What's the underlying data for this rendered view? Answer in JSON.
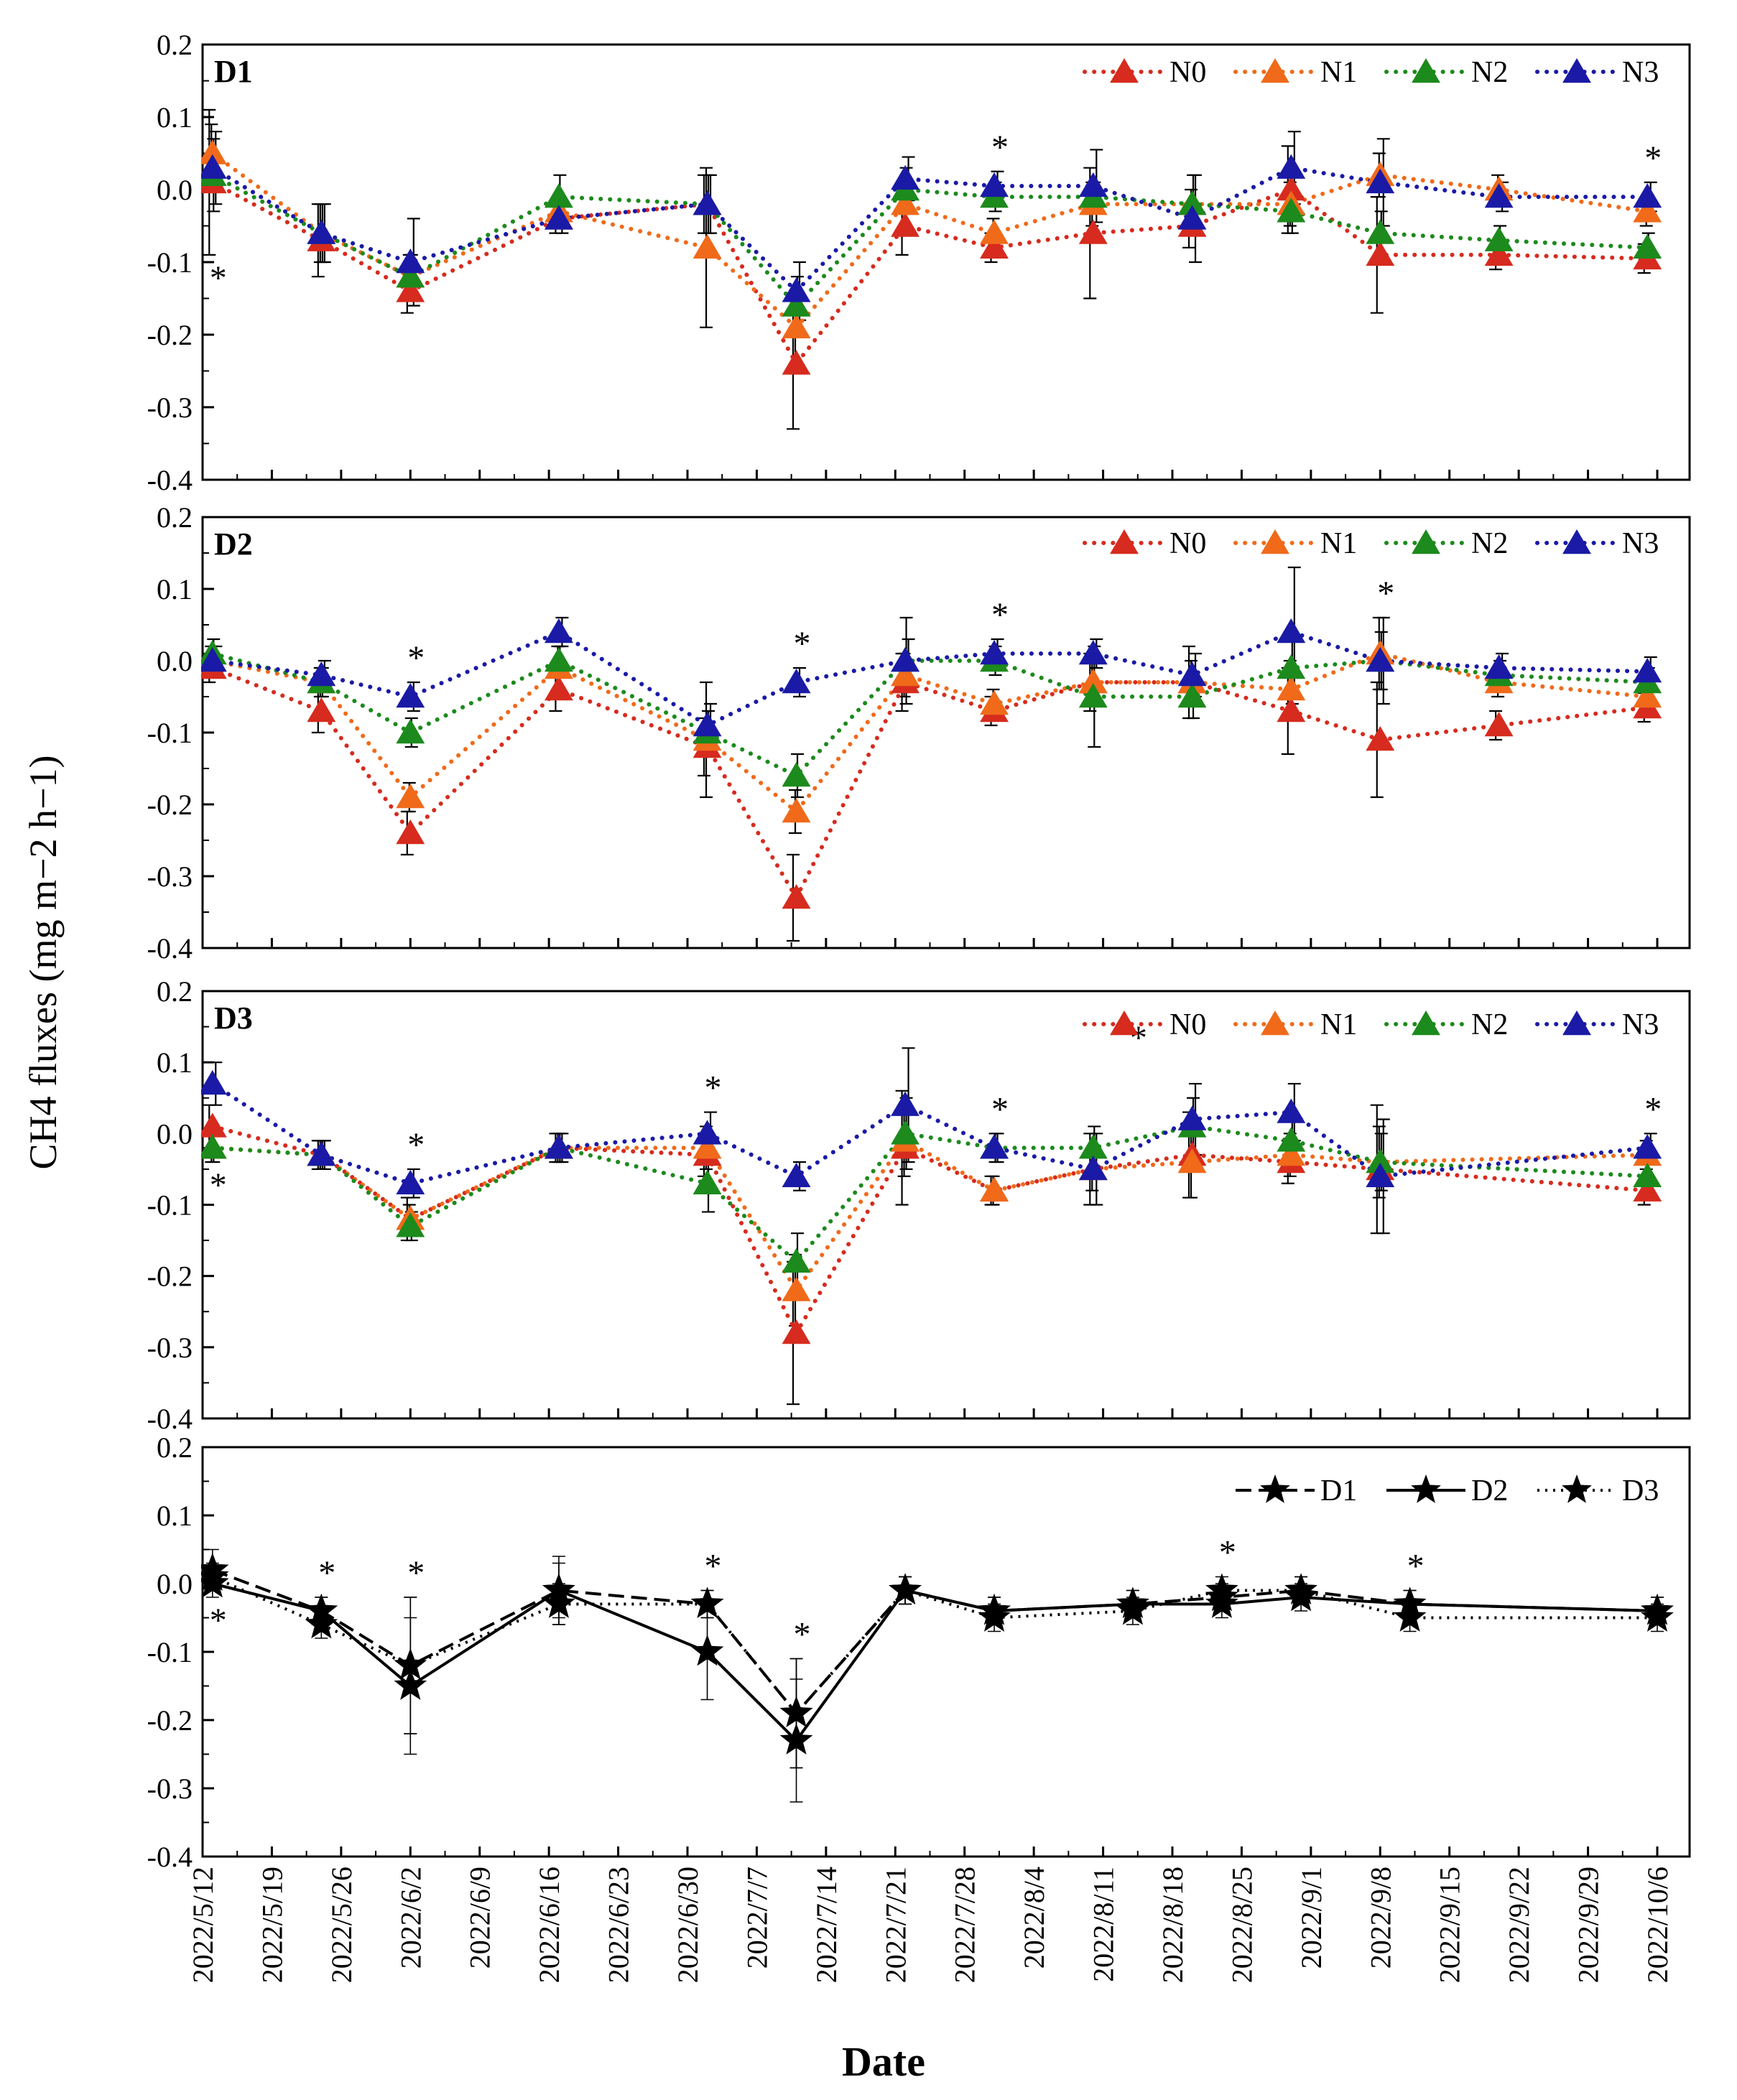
{
  "chart_data": {
    "type": "line",
    "ylabel": "CH4 fluxes (mg m−2 h−1)",
    "xlabel": "Date",
    "x_ticks": [
      "2022/5/12",
      "2022/5/19",
      "2022/5/26",
      "2022/6/2",
      "2022/6/9",
      "2022/6/16",
      "2022/6/23",
      "2022/6/30",
      "2022/7/7",
      "2022/7/14",
      "2022/7/21",
      "2022/7/28",
      "2022/8/4",
      "2022/8/11",
      "2022/8/18",
      "2022/8/25",
      "2022/9/1",
      "2022/9/8",
      "2022/9/15",
      "2022/9/22",
      "2022/9/29",
      "2022/10/6"
    ],
    "ylim": [
      -0.4,
      0.2
    ],
    "y_ticks": [
      "0.2",
      "0.1",
      "0.0",
      "-0.1",
      "-0.2",
      "-0.3",
      "-0.4"
    ],
    "series_colors": {
      "N0": "#d62b1e",
      "N1": "#f06a1a",
      "N2": "#1c8a1c",
      "N3": "#1a1aa6",
      "D": "#000000"
    },
    "panels": [
      {
        "label": "D1",
        "x_days": [
          1,
          12,
          21,
          36,
          51,
          60,
          71,
          80,
          90,
          100,
          110,
          119,
          131,
          146
        ],
        "series": [
          {
            "name": "N0",
            "values": [
              0.01,
              -0.07,
              -0.14,
              -0.04,
              -0.02,
              -0.24,
              -0.05,
              -0.08,
              -0.06,
              -0.05,
              0.0,
              -0.09,
              -0.09,
              -0.095
            ],
            "errors": [
              0.1,
              0.05,
              0.03,
              0.02,
              0.04,
              0.09,
              0.04,
              0.02,
              0.09,
              0.03,
              0.06,
              0.08,
              0.02,
              0.02
            ]
          },
          {
            "name": "N1",
            "values": [
              0.05,
              -0.06,
              -0.12,
              -0.03,
              -0.08,
              -0.19,
              -0.02,
              -0.06,
              -0.02,
              -0.02,
              -0.02,
              0.02,
              0.0,
              -0.03
            ],
            "errors": [
              0.04,
              0.04,
              0.03,
              0.02,
              0.11,
              0.05,
              0.03,
              0.02,
              0.03,
              0.02,
              0.03,
              0.03,
              0.02,
              0.02
            ]
          },
          {
            "name": "N2",
            "values": [
              0.02,
              -0.06,
              -0.12,
              -0.01,
              -0.02,
              -0.16,
              0.0,
              -0.01,
              -0.01,
              -0.02,
              -0.03,
              -0.06,
              -0.07,
              -0.08
            ],
            "errors": [
              0.05,
              0.04,
              0.03,
              0.03,
              0.04,
              0.04,
              0.03,
              0.02,
              0.02,
              0.04,
              0.03,
              0.03,
              0.02,
              0.02
            ]
          },
          {
            "name": "N3",
            "values": [
              0.03,
              -0.06,
              -0.1,
              -0.04,
              -0.02,
              -0.14,
              0.015,
              0.005,
              0.005,
              -0.04,
              0.03,
              0.01,
              -0.01,
              -0.01
            ],
            "errors": [
              0.05,
              0.04,
              0.06,
              0.02,
              0.04,
              0.04,
              0.03,
              0.02,
              0.05,
              0.06,
              0.05,
              0.06,
              0.02,
              0.02
            ]
          }
        ],
        "significance": [
          {
            "day": 1,
            "pos": "below"
          },
          {
            "day": 80,
            "pos": "above"
          },
          {
            "day": 146,
            "pos": "above"
          }
        ]
      },
      {
        "label": "D2",
        "x_days": [
          1,
          12,
          21,
          36,
          51,
          60,
          71,
          80,
          90,
          100,
          110,
          119,
          131,
          146
        ],
        "series": [
          {
            "name": "N0",
            "values": [
              -0.01,
              -0.07,
              -0.24,
              -0.04,
              -0.12,
              -0.33,
              -0.03,
              -0.07,
              -0.03,
              -0.03,
              -0.07,
              -0.11,
              -0.09,
              -0.065
            ],
            "errors": [
              0.02,
              0.03,
              0.03,
              0.03,
              0.04,
              0.06,
              0.04,
              0.02,
              0.04,
              0.05,
              0.06,
              0.08,
              0.02,
              0.02
            ]
          },
          {
            "name": "N1",
            "values": [
              0.0,
              -0.03,
              -0.19,
              -0.01,
              -0.11,
              -0.21,
              -0.02,
              -0.06,
              -0.03,
              -0.03,
              -0.04,
              0.01,
              -0.03,
              -0.05
            ],
            "errors": [
              0.02,
              0.02,
              0.02,
              0.03,
              0.08,
              0.03,
              0.03,
              0.02,
              0.03,
              0.03,
              0.04,
              0.05,
              0.02,
              0.02
            ]
          },
          {
            "name": "N2",
            "values": [
              0.01,
              -0.03,
              -0.1,
              0.0,
              -0.1,
              -0.16,
              0.0,
              0.0,
              -0.05,
              -0.05,
              -0.01,
              0.0,
              -0.02,
              -0.03
            ],
            "errors": [
              0.02,
              0.02,
              0.02,
              0.02,
              0.03,
              0.03,
              0.06,
              0.02,
              0.07,
              0.03,
              0.05,
              0.04,
              0.02,
              0.02
            ]
          },
          {
            "name": "N3",
            "values": [
              0.0,
              -0.02,
              -0.05,
              0.04,
              -0.09,
              -0.03,
              0.0,
              0.01,
              0.01,
              -0.02,
              0.04,
              0.0,
              -0.01,
              -0.015
            ],
            "errors": [
              0.02,
              0.02,
              0.02,
              0.02,
              0.03,
              0.02,
              0.03,
              0.02,
              0.02,
              0.03,
              0.09,
              0.06,
              0.02,
              0.02
            ]
          }
        ],
        "significance": [
          {
            "day": 21,
            "pos": "above"
          },
          {
            "day": 60,
            "pos": "above"
          },
          {
            "day": 80,
            "pos": "above"
          },
          {
            "day": 119,
            "pos": "above"
          }
        ]
      },
      {
        "label": "D3",
        "x_days": [
          1,
          12,
          21,
          36,
          51,
          60,
          71,
          80,
          90,
          100,
          110,
          119,
          146
        ],
        "series": [
          {
            "name": "N0",
            "values": [
              0.01,
              -0.03,
              -0.12,
              -0.02,
              -0.03,
              -0.28,
              -0.02,
              -0.08,
              -0.05,
              -0.03,
              -0.04,
              -0.05,
              -0.08
            ],
            "errors": [
              0.03,
              0.02,
              0.03,
              0.02,
              0.03,
              0.1,
              0.08,
              0.02,
              0.05,
              0.06,
              0.03,
              0.09,
              0.02
            ]
          },
          {
            "name": "N1",
            "values": [
              -0.02,
              -0.03,
              -0.12,
              -0.02,
              -0.02,
              -0.22,
              -0.01,
              -0.08,
              -0.05,
              -0.04,
              -0.03,
              -0.04,
              -0.03
            ],
            "errors": [
              0.02,
              0.02,
              0.02,
              0.02,
              0.03,
              0.05,
              0.05,
              0.02,
              0.03,
              0.05,
              0.03,
              0.05,
              0.02
            ]
          },
          {
            "name": "N2",
            "values": [
              -0.02,
              -0.03,
              -0.13,
              -0.02,
              -0.07,
              -0.18,
              0.0,
              -0.02,
              -0.02,
              0.01,
              -0.01,
              -0.04,
              -0.06
            ],
            "errors": [
              0.02,
              0.02,
              0.02,
              0.02,
              0.04,
              0.04,
              0.05,
              0.02,
              0.03,
              0.04,
              0.03,
              0.04,
              0.02
            ]
          },
          {
            "name": "N3",
            "values": [
              0.07,
              -0.03,
              -0.07,
              -0.02,
              0.0,
              -0.06,
              0.04,
              -0.02,
              -0.05,
              0.02,
              0.03,
              -0.06,
              -0.02
            ],
            "errors": [
              0.03,
              0.02,
              0.02,
              0.02,
              0.03,
              0.02,
              0.08,
              0.02,
              0.05,
              0.05,
              0.04,
              0.08,
              0.02
            ]
          }
        ],
        "significance": [
          {
            "day": 1,
            "pos": "below"
          },
          {
            "day": 21,
            "pos": "above"
          },
          {
            "day": 51,
            "pos": "above"
          },
          {
            "day": 80,
            "pos": "above"
          },
          {
            "day": 94,
            "pos": "above"
          },
          {
            "day": 146,
            "pos": "above"
          }
        ]
      },
      {
        "label": "",
        "x_days": [
          1,
          12,
          21,
          36,
          51,
          60,
          71,
          80,
          94,
          103,
          111,
          122,
          147
        ],
        "series": [
          {
            "name": "D1",
            "values": [
              0.02,
              -0.04,
              -0.12,
              -0.01,
              -0.03,
              -0.19,
              -0.01,
              -0.04,
              -0.03,
              -0.02,
              -0.01,
              -0.03,
              -0.04
            ],
            "errors": [
              0.03,
              0.02,
              0.1,
              0.04,
              0.02,
              0.08,
              0.02,
              0.02,
              0.02,
              0.02,
              0.02,
              0.02,
              0.02
            ],
            "style": "dash"
          },
          {
            "name": "D2",
            "values": [
              0.0,
              -0.04,
              -0.15,
              -0.01,
              -0.1,
              -0.23,
              -0.01,
              -0.04,
              -0.03,
              -0.03,
              -0.02,
              -0.03,
              -0.04
            ],
            "errors": [
              0.02,
              0.02,
              0.1,
              0.05,
              0.07,
              0.09,
              0.02,
              0.02,
              0.02,
              0.02,
              0.02,
              0.02,
              0.02
            ],
            "style": "solid"
          },
          {
            "name": "D3",
            "values": [
              0.01,
              -0.06,
              -0.12,
              -0.03,
              -0.03,
              -0.19,
              -0.01,
              -0.05,
              -0.04,
              -0.01,
              -0.01,
              -0.05,
              -0.05
            ],
            "errors": [
              0.02,
              0.02,
              0.1,
              0.03,
              0.02,
              0.08,
              0.02,
              0.02,
              0.02,
              0.02,
              0.02,
              0.02,
              0.02
            ],
            "style": "dot"
          }
        ],
        "significance": [
          {
            "day": 1,
            "pos": "below"
          },
          {
            "day": 12,
            "pos": "above"
          },
          {
            "day": 21,
            "pos": "above"
          },
          {
            "day": 51,
            "pos": "above"
          },
          {
            "day": 60,
            "pos": "above"
          },
          {
            "day": 103,
            "pos": "above"
          },
          {
            "day": 122,
            "pos": "above"
          }
        ]
      }
    ],
    "significance_marker": "*"
  }
}
